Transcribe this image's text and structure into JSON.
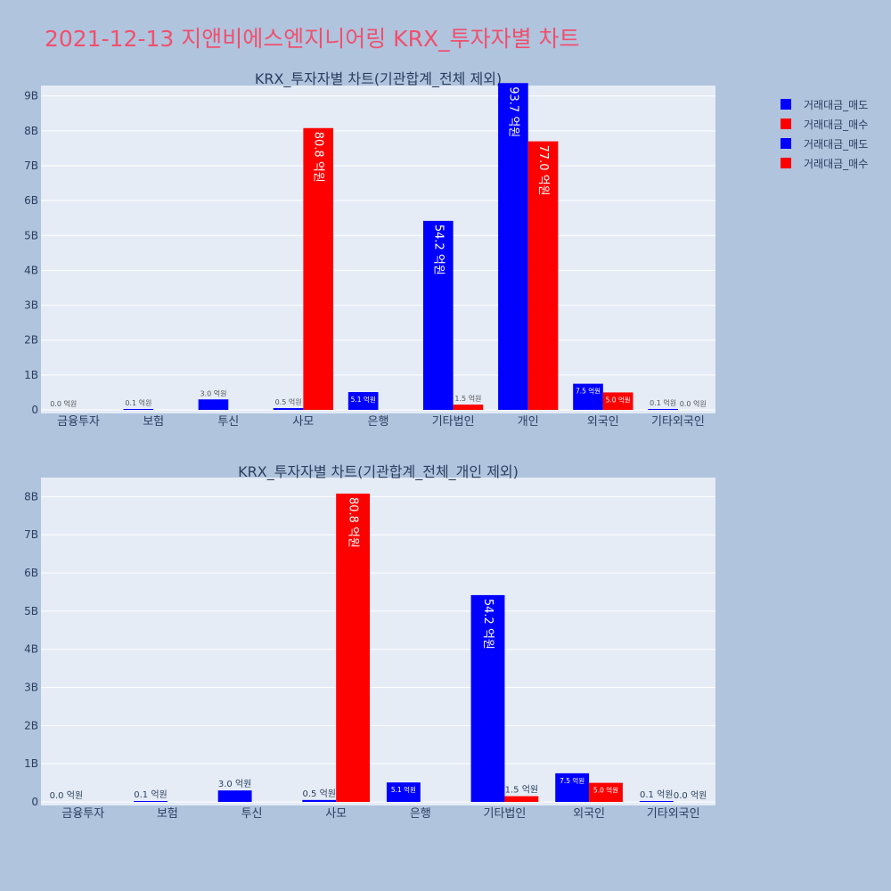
{
  "main_title": "2021-12-13 지앤비에스엔지니어링 KRX_투자자별 차트",
  "legend": [
    {
      "label": "거래대금_매도",
      "color": "#0000ff"
    },
    {
      "label": "거래대금_매수",
      "color": "#ff0000"
    },
    {
      "label": "거래대금_매도",
      "color": "#0000ff"
    },
    {
      "label": "거래대금_매수",
      "color": "#ff0000"
    }
  ],
  "chart_data": [
    {
      "type": "bar",
      "title": "KRX_투자자별 차트(기관합계_전체 제외)",
      "categories": [
        "금융투자",
        "보험",
        "투신",
        "사모",
        "은행",
        "기타법인",
        "개인",
        "외국인",
        "기타외국인"
      ],
      "series": [
        {
          "name": "거래대금_매도",
          "color": "#0000ff",
          "values": [
            0.0,
            0.01,
            0.3,
            0.05,
            0.51,
            5.42,
            9.37,
            0.75,
            0.01
          ],
          "labels": [
            "0.0 억원",
            "0.1 억원",
            "3.0 억원",
            "0.5 억원",
            "5.1 억원",
            "54.2 억원",
            "93.7 억원",
            "7.5 억원",
            "0.1 억원"
          ]
        },
        {
          "name": "거래대금_매수",
          "color": "#ff0000",
          "values": [
            0,
            0,
            0,
            8.08,
            0,
            0.15,
            7.7,
            0.5,
            0.0
          ],
          "labels": [
            "",
            "",
            "",
            "80.8 억원",
            "",
            "1.5 억원",
            "77.0 억원",
            "5.0 억원",
            "0.0 억원"
          ]
        }
      ],
      "ytick_labels": [
        "0",
        "1B",
        "2B",
        "3B",
        "4B",
        "5B",
        "6B",
        "7B",
        "8B",
        "9B"
      ],
      "ylim": [
        0,
        9.3
      ],
      "grid": true,
      "legend": "right"
    },
    {
      "type": "bar",
      "title": "KRX_투자자별 차트(기관합계_전체_개인 제외)",
      "categories": [
        "금융투자",
        "보험",
        "투신",
        "사모",
        "은행",
        "기타법인",
        "외국인",
        "기타외국인"
      ],
      "series": [
        {
          "name": "거래대금_매도",
          "color": "#0000ff",
          "values": [
            0.0,
            0.01,
            0.3,
            0.05,
            0.51,
            5.42,
            0.75,
            0.01
          ],
          "labels": [
            "0.0 억원",
            "0.1 억원",
            "3.0 억원",
            "0.5 억원",
            "5.1 억원",
            "54.2 억원",
            "7.5 억원",
            "0.1 억원"
          ]
        },
        {
          "name": "거래대금_매수",
          "color": "#ff0000",
          "values": [
            0,
            0,
            0,
            8.08,
            0,
            0.15,
            0.5,
            0.0
          ],
          "labels": [
            "",
            "",
            "",
            "80.8 억원",
            "",
            "1.5 억원",
            "5.0 억원",
            "0.0 억원"
          ]
        }
      ],
      "ytick_labels": [
        "0",
        "1B",
        "2B",
        "3B",
        "4B",
        "5B",
        "6B",
        "7B",
        "8B"
      ],
      "ylim": [
        0,
        8.5
      ],
      "grid": true,
      "legend": "right"
    }
  ]
}
